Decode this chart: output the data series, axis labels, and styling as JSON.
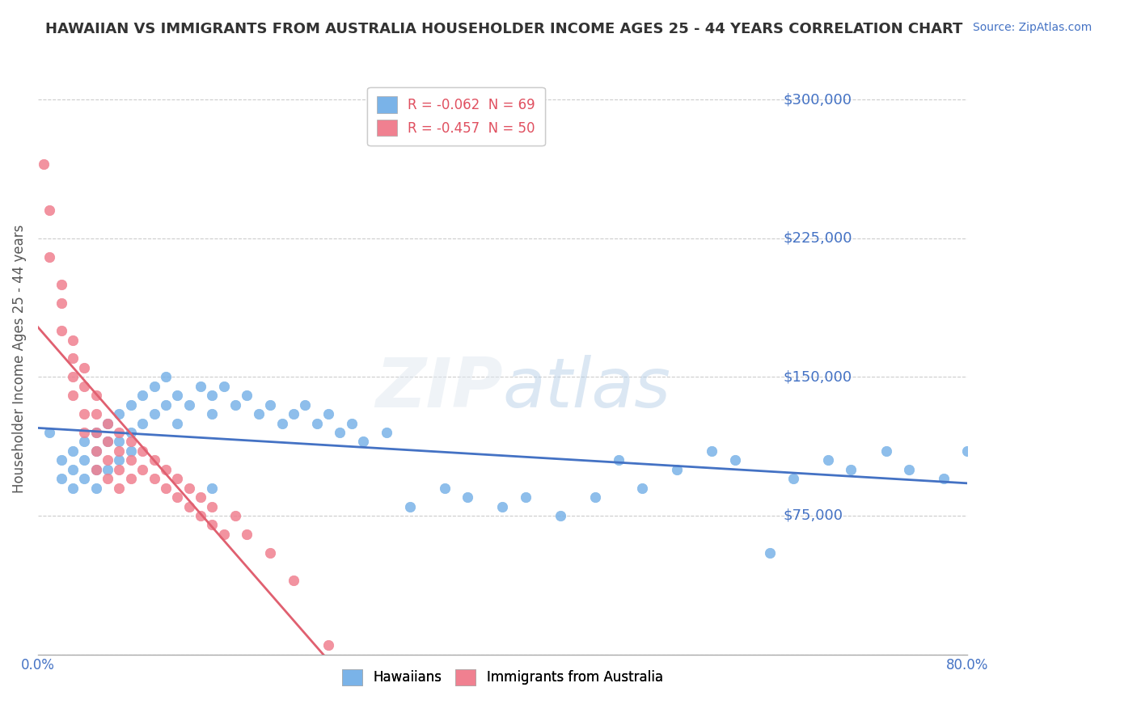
{
  "title": "HAWAIIAN VS IMMIGRANTS FROM AUSTRALIA HOUSEHOLDER INCOME AGES 25 - 44 YEARS CORRELATION CHART",
  "source": "Source: ZipAtlas.com",
  "xlabel": "",
  "ylabel": "Householder Income Ages 25 - 44 years",
  "xlim": [
    0.0,
    0.8
  ],
  "ylim": [
    0,
    320000
  ],
  "yticks": [
    0,
    75000,
    150000,
    225000,
    300000
  ],
  "ytick_labels": [
    "",
    "$75,000",
    "$150,000",
    "$225,000",
    "$300,000"
  ],
  "xtick_labels": [
    "0.0%",
    "80.0%"
  ],
  "watermark": "ZIPatlas",
  "legend_entries": [
    {
      "label": "R = -0.062  N = 69",
      "color": "#a8c8f0"
    },
    {
      "label": "R = -0.457  N = 50",
      "color": "#f0a8b8"
    }
  ],
  "hawaiians_color": "#7ab3e8",
  "australia_color": "#f08090",
  "trend_hawaiians_color": "#4472c4",
  "trend_australia_color": "#e06070",
  "hawaiians_x": [
    0.01,
    0.02,
    0.02,
    0.03,
    0.03,
    0.03,
    0.04,
    0.04,
    0.04,
    0.05,
    0.05,
    0.05,
    0.05,
    0.06,
    0.06,
    0.06,
    0.07,
    0.07,
    0.07,
    0.08,
    0.08,
    0.08,
    0.09,
    0.09,
    0.1,
    0.1,
    0.11,
    0.11,
    0.12,
    0.12,
    0.13,
    0.14,
    0.15,
    0.15,
    0.16,
    0.17,
    0.18,
    0.19,
    0.2,
    0.21,
    0.22,
    0.23,
    0.24,
    0.25,
    0.26,
    0.27,
    0.28,
    0.3,
    0.32,
    0.35,
    0.37,
    0.4,
    0.42,
    0.45,
    0.48,
    0.5,
    0.52,
    0.55,
    0.58,
    0.6,
    0.63,
    0.65,
    0.68,
    0.7,
    0.73,
    0.75,
    0.78,
    0.8,
    0.15
  ],
  "hawaiians_y": [
    120000,
    105000,
    95000,
    110000,
    100000,
    90000,
    115000,
    105000,
    95000,
    120000,
    110000,
    100000,
    90000,
    125000,
    115000,
    100000,
    130000,
    115000,
    105000,
    135000,
    120000,
    110000,
    140000,
    125000,
    145000,
    130000,
    150000,
    135000,
    140000,
    125000,
    135000,
    145000,
    130000,
    140000,
    145000,
    135000,
    140000,
    130000,
    135000,
    125000,
    130000,
    135000,
    125000,
    130000,
    120000,
    125000,
    115000,
    120000,
    80000,
    90000,
    85000,
    80000,
    85000,
    75000,
    85000,
    105000,
    90000,
    100000,
    110000,
    105000,
    55000,
    95000,
    105000,
    100000,
    110000,
    100000,
    95000,
    110000,
    90000
  ],
  "australia_x": [
    0.005,
    0.01,
    0.01,
    0.02,
    0.02,
    0.02,
    0.03,
    0.03,
    0.03,
    0.03,
    0.04,
    0.04,
    0.04,
    0.04,
    0.05,
    0.05,
    0.05,
    0.05,
    0.05,
    0.06,
    0.06,
    0.06,
    0.06,
    0.07,
    0.07,
    0.07,
    0.07,
    0.08,
    0.08,
    0.08,
    0.09,
    0.09,
    0.1,
    0.1,
    0.11,
    0.11,
    0.12,
    0.12,
    0.13,
    0.13,
    0.14,
    0.14,
    0.15,
    0.15,
    0.16,
    0.17,
    0.18,
    0.2,
    0.22,
    0.25
  ],
  "australia_y": [
    265000,
    240000,
    215000,
    200000,
    190000,
    175000,
    170000,
    160000,
    150000,
    140000,
    155000,
    145000,
    130000,
    120000,
    140000,
    130000,
    120000,
    110000,
    100000,
    125000,
    115000,
    105000,
    95000,
    120000,
    110000,
    100000,
    90000,
    115000,
    105000,
    95000,
    110000,
    100000,
    105000,
    95000,
    100000,
    90000,
    95000,
    85000,
    90000,
    80000,
    85000,
    75000,
    80000,
    70000,
    65000,
    75000,
    65000,
    55000,
    40000,
    5000
  ]
}
